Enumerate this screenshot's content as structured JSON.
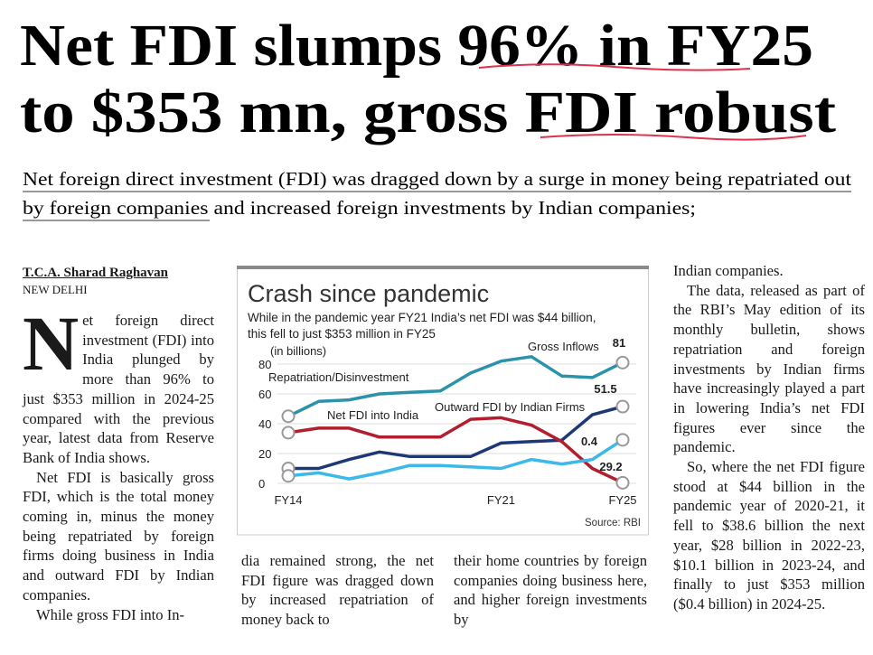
{
  "header": {
    "title": [
      "Net FDI slumps 96% in FY25",
      "to $353 mn, gross FDI robust"
    ],
    "subtitle": [
      "Net foreign direct investment (FDI) was dragged down by a surge in money being repatriated out",
      "by foreign companies and increased foreign investments by Indian companies;"
    ]
  },
  "byline": {
    "author": "T.C.A. Sharad Raghavan",
    "location": "NEW DELHI"
  },
  "article": {
    "dropcap": "N",
    "column1": [
      "et foreign direct investment (FDI) into India plunged by more than 96% to just $353 million in 2024-25 compared with the previous year, latest data from Reserve Bank of India shows.",
      "Net FDI is basically gross FDI, which is the total money coming in, minus the money being repatriated by foreign firms doing business in India and outward FDI by Indian companies.",
      "While gross FDI into In-"
    ],
    "column2": [
      "dia remained strong, the net FDI figure was dragged down by increased repatriation of money back to"
    ],
    "column3": [
      "their home countries by foreign companies doing business here, and higher foreign investments by"
    ],
    "column4": [
      "Indian companies.",
      "The data, released as part of the RBI’s May edition of its monthly bulletin, shows repatriation and foreign investments by Indian firms have increasingly played a part in lowering India’s net FDI figures ever since the pandemic.",
      "So, where the net FDI figure stood at $44 billion in the pandemic year of 2020-21, it fell to $38.6 billion the next year, $28 billion in 2022-23, $10.1 billion in 2023-24, and finally to just $353 million ($0.4 billion) in 2024-25."
    ]
  },
  "chart_data": {
    "type": "line",
    "title": "Crash since pandemic",
    "subtitle": [
      "While in the pandemic year FY21 India’s net FDI was $44 billion,",
      "this fell to just $353 million in FY25"
    ],
    "unit_label": "(in billions)",
    "source": "Source: RBI",
    "x": [
      "FY14",
      null,
      null,
      null,
      null,
      null,
      null,
      "FY21",
      null,
      null,
      null,
      "FY25"
    ],
    "series": [
      {
        "name": "Gross Inflows",
        "color": "#2b93a9",
        "values": [
          45,
          55,
          56,
          60,
          61,
          62,
          74,
          82,
          85,
          72,
          71,
          81
        ]
      },
      {
        "name": "Repatriation/Disinvestment",
        "color": "#1e3877",
        "values": [
          10,
          10,
          16,
          21,
          18,
          18,
          18,
          27,
          28,
          29,
          46,
          51.5
        ]
      },
      {
        "name": "Net FDI into India",
        "color": "#b21e2e",
        "values": [
          34,
          37,
          37,
          31,
          31,
          31,
          43,
          44,
          39,
          28,
          10,
          0.4
        ]
      },
      {
        "name": "Outward FDI by Indian Firms",
        "color": "#3cb9e9",
        "values": [
          5,
          7,
          3,
          7,
          12,
          12,
          11,
          10,
          16,
          13,
          16,
          29.2
        ]
      }
    ],
    "ylim": [
      0,
      90
    ],
    "yticks": [
      0,
      20,
      40,
      60,
      80
    ],
    "grid": true
  }
}
